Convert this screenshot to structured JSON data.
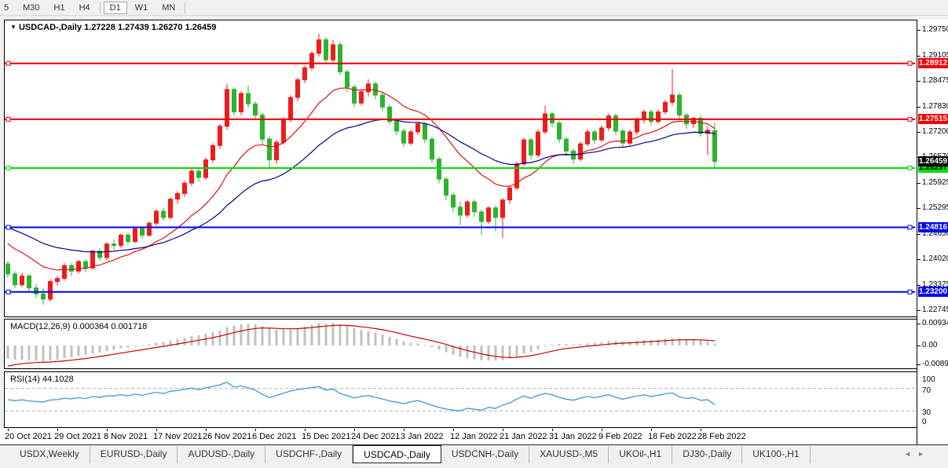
{
  "toolbar": {
    "periods": [
      {
        "label": "5",
        "active": false
      },
      {
        "label": "M30",
        "active": false
      },
      {
        "label": "H1",
        "active": false
      },
      {
        "label": "H4",
        "active": false
      },
      {
        "label": "D1",
        "active": true
      },
      {
        "label": "W1",
        "active": false
      },
      {
        "label": "MN",
        "active": false
      }
    ]
  },
  "main_chart": {
    "marker": "▼",
    "symbol": "USDCAD-,Daily",
    "ohlc_text": "1.27228 1.27439 1.26270 1.26459",
    "axis_ticks": [
      "1.29750",
      "1.29105",
      "1.28475",
      "1.27830",
      "1.27200",
      "1.26570",
      "1.25925",
      "1.25295",
      "1.24650",
      "1.24020",
      "1.23375",
      "1.22745"
    ],
    "hlines": [
      {
        "price": 1.28912,
        "label": "1.28912",
        "color": "#f00000",
        "text_color": "#ffffff"
      },
      {
        "price": 1.27515,
        "label": "1.27515",
        "color": "#f00000",
        "text_color": "#ffffff"
      },
      {
        "price": 1.26297,
        "label": "1.26297",
        "color": "#00dd00",
        "text_color": "#000000"
      },
      {
        "price": 1.24816,
        "label": "1.24816",
        "color": "#0000f0",
        "text_color": "#ffffff"
      },
      {
        "price": 1.232,
        "label": "1.23200",
        "color": "#0000f0",
        "text_color": "#ffffff"
      }
    ],
    "current_price": {
      "value": 1.26459,
      "label": "1.26459",
      "bg": "#000000",
      "text_color": "#ffffff"
    },
    "candles": [
      [
        1.239,
        1.2398,
        1.2355,
        1.2365
      ],
      [
        1.2365,
        1.2372,
        1.233,
        1.2338
      ],
      [
        1.2338,
        1.2368,
        1.2332,
        1.236
      ],
      [
        1.236,
        1.2365,
        1.2322,
        1.233
      ],
      [
        1.233,
        1.234,
        1.2305,
        1.2315
      ],
      [
        1.2315,
        1.233,
        1.2288,
        1.2302
      ],
      [
        1.2302,
        1.2352,
        1.2296,
        1.2346
      ],
      [
        1.2346,
        1.236,
        1.2336,
        1.2354
      ],
      [
        1.2354,
        1.2392,
        1.2348,
        1.2386
      ],
      [
        1.2386,
        1.2392,
        1.236,
        1.2372
      ],
      [
        1.2372,
        1.24,
        1.2366,
        1.2396
      ],
      [
        1.2396,
        1.2402,
        1.237,
        1.238
      ],
      [
        1.238,
        1.2426,
        1.2376,
        1.2422
      ],
      [
        1.2422,
        1.243,
        1.2398,
        1.2406
      ],
      [
        1.2406,
        1.2444,
        1.24,
        1.244
      ],
      [
        1.244,
        1.2452,
        1.2425,
        1.2436
      ],
      [
        1.2436,
        1.2466,
        1.243,
        1.2462
      ],
      [
        1.2462,
        1.2468,
        1.2438,
        1.2446
      ],
      [
        1.2446,
        1.2482,
        1.2442,
        1.2478
      ],
      [
        1.2478,
        1.2484,
        1.2452,
        1.2462
      ],
      [
        1.2462,
        1.2496,
        1.2458,
        1.2492
      ],
      [
        1.2492,
        1.2526,
        1.2486,
        1.2522
      ],
      [
        1.2522,
        1.253,
        1.2498,
        1.2506
      ],
      [
        1.2506,
        1.2556,
        1.2502,
        1.2552
      ],
      [
        1.2552,
        1.2572,
        1.254,
        1.2566
      ],
      [
        1.2566,
        1.2598,
        1.2558,
        1.2592
      ],
      [
        1.2592,
        1.2628,
        1.2584,
        1.2622
      ],
      [
        1.2622,
        1.263,
        1.2596,
        1.2606
      ],
      [
        1.2606,
        1.2656,
        1.26,
        1.265
      ],
      [
        1.265,
        1.2692,
        1.2642,
        1.2686
      ],
      [
        1.2686,
        1.274,
        1.2678,
        1.2734
      ],
      [
        1.2734,
        1.284,
        1.2726,
        1.2826
      ],
      [
        1.2826,
        1.2832,
        1.276,
        1.277
      ],
      [
        1.277,
        1.2822,
        1.2762,
        1.2816
      ],
      [
        1.2816,
        1.2836,
        1.278,
        1.279
      ],
      [
        1.279,
        1.2796,
        1.2752,
        1.2762
      ],
      [
        1.2762,
        1.2768,
        1.269,
        1.2702
      ],
      [
        1.2702,
        1.271,
        1.2628,
        1.265
      ],
      [
        1.265,
        1.27,
        1.264,
        1.2694
      ],
      [
        1.2694,
        1.2756,
        1.2688,
        1.275
      ],
      [
        1.275,
        1.2812,
        1.2744,
        1.2806
      ],
      [
        1.2806,
        1.2856,
        1.2798,
        1.285
      ],
      [
        1.285,
        1.2886,
        1.2842,
        1.288
      ],
      [
        1.288,
        1.2922,
        1.2874,
        1.2916
      ],
      [
        1.2916,
        1.2965,
        1.2908,
        1.295
      ],
      [
        1.295,
        1.2958,
        1.289,
        1.29
      ],
      [
        1.29,
        1.295,
        1.2894,
        1.2938
      ],
      [
        1.2938,
        1.2944,
        1.2862,
        1.287
      ],
      [
        1.287,
        1.2876,
        1.282,
        1.2832
      ],
      [
        1.2832,
        1.2838,
        1.2782,
        1.2792
      ],
      [
        1.2792,
        1.2826,
        1.2786,
        1.282
      ],
      [
        1.282,
        1.2852,
        1.2808,
        1.284
      ],
      [
        1.284,
        1.2846,
        1.2802,
        1.2812
      ],
      [
        1.2812,
        1.2818,
        1.2772,
        1.2782
      ],
      [
        1.2782,
        1.2788,
        1.2738,
        1.2746
      ],
      [
        1.2746,
        1.2752,
        1.2712,
        1.2722
      ],
      [
        1.2722,
        1.2728,
        1.2682,
        1.2692
      ],
      [
        1.2692,
        1.2726,
        1.2686,
        1.272
      ],
      [
        1.272,
        1.2746,
        1.2712,
        1.274
      ],
      [
        1.274,
        1.2744,
        1.2692,
        1.2702
      ],
      [
        1.2702,
        1.2708,
        1.2642,
        1.2652
      ],
      [
        1.2652,
        1.2658,
        1.2592,
        1.2602
      ],
      [
        1.2602,
        1.2608,
        1.255,
        1.2562
      ],
      [
        1.2562,
        1.2568,
        1.252,
        1.2532
      ],
      [
        1.2532,
        1.2546,
        1.2488,
        1.2512
      ],
      [
        1.2512,
        1.255,
        1.2506,
        1.2545
      ],
      [
        1.2545,
        1.2552,
        1.2508,
        1.252
      ],
      [
        1.252,
        1.2526,
        1.2462,
        1.2496
      ],
      [
        1.2496,
        1.2534,
        1.249,
        1.253
      ],
      [
        1.253,
        1.2536,
        1.2472,
        1.2506
      ],
      [
        1.2506,
        1.2554,
        1.2455,
        1.255
      ],
      [
        1.255,
        1.2586,
        1.254,
        1.258
      ],
      [
        1.258,
        1.2646,
        1.2574,
        1.264
      ],
      [
        1.264,
        1.2706,
        1.2634,
        1.27
      ],
      [
        1.27,
        1.2706,
        1.2652,
        1.2662
      ],
      [
        1.2662,
        1.2726,
        1.2656,
        1.272
      ],
      [
        1.272,
        1.2785,
        1.2714,
        1.2765
      ],
      [
        1.2765,
        1.277,
        1.2732,
        1.2742
      ],
      [
        1.2742,
        1.2748,
        1.2692,
        1.2702
      ],
      [
        1.2702,
        1.2708,
        1.266,
        1.2672
      ],
      [
        1.2672,
        1.2678,
        1.264,
        1.2652
      ],
      [
        1.2652,
        1.2696,
        1.2646,
        1.269
      ],
      [
        1.269,
        1.2726,
        1.2684,
        1.272
      ],
      [
        1.272,
        1.2726,
        1.269,
        1.27
      ],
      [
        1.27,
        1.2736,
        1.2694,
        1.273
      ],
      [
        1.273,
        1.2766,
        1.2722,
        1.276
      ],
      [
        1.276,
        1.2766,
        1.2712,
        1.2722
      ],
      [
        1.2722,
        1.2728,
        1.268,
        1.2692
      ],
      [
        1.2692,
        1.2726,
        1.2686,
        1.272
      ],
      [
        1.272,
        1.2756,
        1.2714,
        1.275
      ],
      [
        1.275,
        1.2776,
        1.2742,
        1.277
      ],
      [
        1.277,
        1.2776,
        1.2736,
        1.2746
      ],
      [
        1.2746,
        1.2776,
        1.274,
        1.277
      ],
      [
        1.277,
        1.28,
        1.2764,
        1.2794
      ],
      [
        1.2794,
        1.2877,
        1.2786,
        1.2812
      ],
      [
        1.2812,
        1.2818,
        1.2752,
        1.2762
      ],
      [
        1.2762,
        1.2768,
        1.2728,
        1.274
      ],
      [
        1.274,
        1.2758,
        1.273,
        1.2754
      ],
      [
        1.2754,
        1.2762,
        1.2708,
        1.2716
      ],
      [
        1.2716,
        1.2734,
        1.2662,
        1.2724
      ],
      [
        1.27228,
        1.27439,
        1.2627,
        1.26459
      ]
    ]
  },
  "indicators": {
    "macd": {
      "name": "MACD(12,26,9)",
      "values": "0.000364 0.001718",
      "axis_labels": [
        "0.009345",
        "0.00",
        "-0.00890"
      ]
    },
    "rsi": {
      "name": "RSI(14)",
      "value": "44.1028",
      "axis_labels": [
        "100",
        "70",
        "30",
        "0"
      ],
      "levels": [
        70,
        30
      ]
    }
  },
  "time_axis": {
    "labels": [
      "20 Oct 2021",
      "29 Oct 2021",
      "8 Nov 2021",
      "17 Nov 2021",
      "26 Nov 2021",
      "6 Dec 2021",
      "15 Dec 2021",
      "24 Dec 2021",
      "3 Jan 2022",
      "12 Jan 2022",
      "21 Jan 2022",
      "31 Jan 2022",
      "9 Feb 2022",
      "18 Feb 2022",
      "28 Feb 2022"
    ]
  },
  "tabs": {
    "items": [
      "USDX,Weekly",
      "EURUSD-,Daily",
      "AUDUSD-,Daily",
      "USDCHF-,Daily",
      "USDCAD-,Daily",
      "USDCNH-,Daily",
      "XAUUSD-,M5",
      "UKOil-,H1",
      "DJ30-,Daily",
      "UK100-,H1"
    ],
    "active": "USDCAD-,Daily",
    "scroll_left": "◄",
    "scroll_right": "►"
  },
  "colors": {
    "candle_up": "#ee1c1c",
    "candle_down": "#2db32d",
    "ma_fast": "#dd1111",
    "ma_slow": "#000089",
    "macd_hist": "#c0c0c0",
    "macd_signal": "#cc0000",
    "rsi_line": "#3d96dd",
    "rsi_level": "#b0b0b0"
  }
}
